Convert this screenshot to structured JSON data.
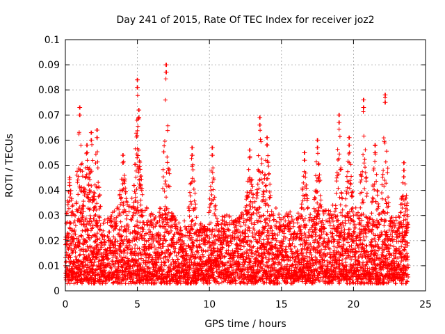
{
  "chart_data": {
    "type": "scatter",
    "title": "Day 241 of 2015, Rate Of TEC Index for receiver joz2",
    "xlabel": "GPS time / hours",
    "ylabel": "ROTI / TECUs",
    "xlim": [
      0,
      25
    ],
    "ylim": [
      0,
      0.1
    ],
    "x_ticks": [
      "0",
      "5",
      "10",
      "15",
      "20",
      "25"
    ],
    "y_ticks": [
      "0",
      "0.01",
      "0.02",
      "0.03",
      "0.04",
      "0.05",
      "0.06",
      "0.07",
      "0.08",
      "0.09",
      "0.1"
    ],
    "x_tick_values": [
      0,
      5,
      10,
      15,
      20,
      25
    ],
    "y_tick_values": [
      0,
      0.01,
      0.02,
      0.03,
      0.04,
      0.05,
      0.06,
      0.07,
      0.08,
      0.09,
      0.1
    ],
    "grid": true,
    "marker": "+",
    "marker_color": "#ff0000",
    "series": [
      {
        "x_range": [
          0,
          23.8
        ],
        "x_step": 0.02,
        "baseline_envelope": [
          [
            0,
            0.025
          ],
          [
            1,
            0.035
          ],
          [
            2,
            0.03
          ],
          [
            3,
            0.03
          ],
          [
            4,
            0.035
          ],
          [
            5,
            0.035
          ],
          [
            6,
            0.03
          ],
          [
            7,
            0.035
          ],
          [
            8,
            0.025
          ],
          [
            9,
            0.03
          ],
          [
            10,
            0.025
          ],
          [
            11,
            0.03
          ],
          [
            12,
            0.03
          ],
          [
            13,
            0.035
          ],
          [
            14,
            0.035
          ],
          [
            15,
            0.03
          ],
          [
            16,
            0.03
          ],
          [
            17,
            0.03
          ],
          [
            18,
            0.035
          ],
          [
            19,
            0.03
          ],
          [
            20,
            0.035
          ],
          [
            21,
            0.03
          ],
          [
            22,
            0.03
          ],
          [
            23,
            0.03
          ],
          [
            23.8,
            0.03
          ]
        ],
        "peaks": [
          {
            "x": 0.3,
            "y": 0.045
          },
          {
            "x": 1.0,
            "y": 0.073
          },
          {
            "x": 1.5,
            "y": 0.058
          },
          {
            "x": 1.8,
            "y": 0.063
          },
          {
            "x": 2.2,
            "y": 0.064
          },
          {
            "x": 4.0,
            "y": 0.054
          },
          {
            "x": 5.0,
            "y": 0.084
          },
          {
            "x": 5.1,
            "y": 0.072
          },
          {
            "x": 7.0,
            "y": 0.09
          },
          {
            "x": 8.8,
            "y": 0.057
          },
          {
            "x": 10.2,
            "y": 0.057
          },
          {
            "x": 12.8,
            "y": 0.056
          },
          {
            "x": 13.5,
            "y": 0.069
          },
          {
            "x": 14.0,
            "y": 0.061
          },
          {
            "x": 16.6,
            "y": 0.055
          },
          {
            "x": 17.5,
            "y": 0.06
          },
          {
            "x": 19.0,
            "y": 0.07
          },
          {
            "x": 19.7,
            "y": 0.061
          },
          {
            "x": 20.7,
            "y": 0.076
          },
          {
            "x": 21.5,
            "y": 0.058
          },
          {
            "x": 22.2,
            "y": 0.078
          },
          {
            "x": 23.5,
            "y": 0.051
          }
        ],
        "min_y": 0.004
      }
    ]
  }
}
